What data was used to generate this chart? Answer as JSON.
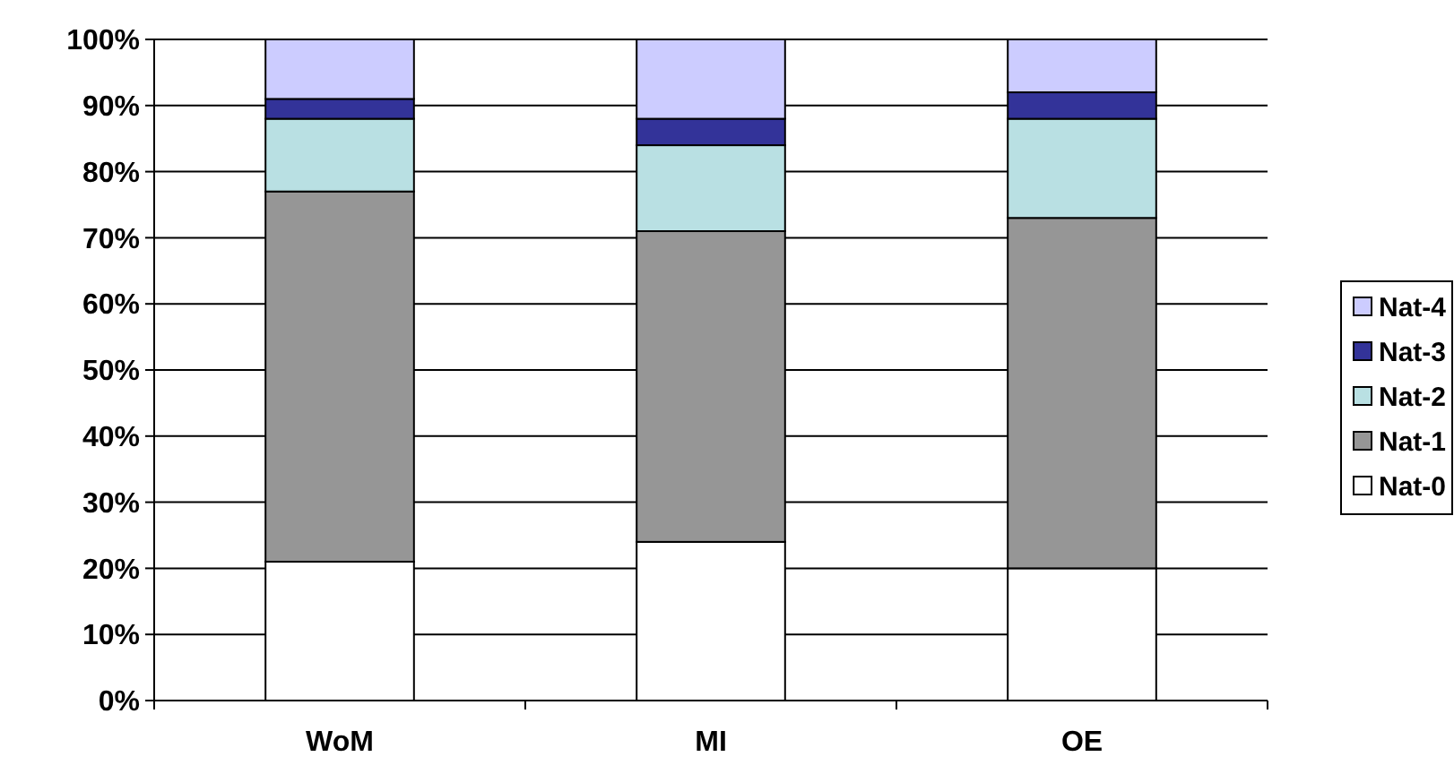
{
  "chart_data": {
    "type": "bar",
    "stacked": true,
    "categories": [
      "WoM",
      "MI",
      "OE"
    ],
    "series": [
      {
        "name": "Nat-0",
        "color": "#ffffff",
        "values": [
          21,
          24,
          20
        ]
      },
      {
        "name": "Nat-1",
        "color": "#969696",
        "values": [
          56,
          47,
          53
        ]
      },
      {
        "name": "Nat-2",
        "color": "#b9e0e3",
        "values": [
          11,
          13,
          15
        ]
      },
      {
        "name": "Nat-3",
        "color": "#333399",
        "values": [
          3,
          4,
          4
        ]
      },
      {
        "name": "Nat-4",
        "color": "#ccccff",
        "values": [
          9,
          12,
          8
        ]
      }
    ],
    "ylim": [
      0,
      100
    ],
    "yticks": [
      {
        "value": 0,
        "label": "0%"
      },
      {
        "value": 10,
        "label": "10%"
      },
      {
        "value": 20,
        "label": "20%"
      },
      {
        "value": 30,
        "label": "30%"
      },
      {
        "value": 40,
        "label": "40%"
      },
      {
        "value": 50,
        "label": "50%"
      },
      {
        "value": 60,
        "label": "60%"
      },
      {
        "value": 70,
        "label": "70%"
      },
      {
        "value": 80,
        "label": "80%"
      },
      {
        "value": 90,
        "label": "90%"
      },
      {
        "value": 100,
        "label": "100%"
      }
    ],
    "grid": "y",
    "legend": "right"
  }
}
